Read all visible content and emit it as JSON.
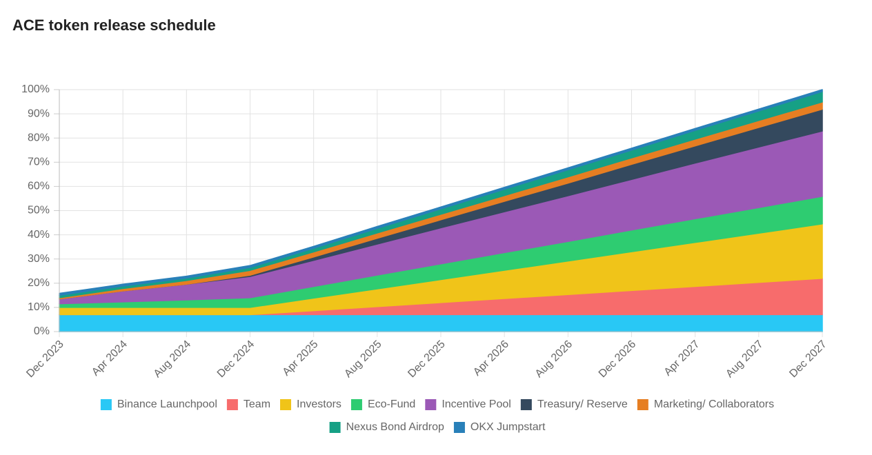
{
  "chart_data": {
    "type": "stacked-area",
    "title": "ACE token release schedule",
    "categories": [
      "Dec 2023",
      "Apr 2024",
      "Aug 2024",
      "Dec 2024",
      "Apr 2025",
      "Aug 2025",
      "Dec 2025",
      "Apr 2026",
      "Aug 2026",
      "Dec 2026",
      "Apr 2027",
      "Aug 2027",
      "Dec 2027"
    ],
    "series": [
      {
        "name": "Binance Launchpool",
        "color": "#29c8f5",
        "values": [
          7,
          7,
          7,
          7,
          7,
          7,
          7,
          7,
          7,
          7,
          7,
          7,
          7
        ]
      },
      {
        "name": "Team",
        "color": "#f76c6c",
        "values": [
          0,
          0,
          0,
          0,
          1.67,
          3.33,
          5,
          6.67,
          8.33,
          10,
          11.67,
          13.33,
          15
        ]
      },
      {
        "name": "Investors",
        "color": "#f0c419",
        "values": [
          3,
          3,
          3,
          3,
          5.17,
          7.33,
          9.5,
          11.67,
          13.83,
          16,
          18.17,
          20.33,
          22.5
        ]
      },
      {
        "name": "Eco-Fund",
        "color": "#2ecc71",
        "values": [
          1.5,
          2.3,
          3.1,
          4,
          4.8,
          5.7,
          6.5,
          7.3,
          8.1,
          9,
          9.8,
          10.6,
          11.4
        ]
      },
      {
        "name": "Incentive Pool",
        "color": "#9b59b6",
        "values": [
          2,
          4.5,
          6.5,
          8.8,
          10.8,
          12.8,
          14.9,
          16.9,
          18.9,
          20.9,
          23,
          25,
          27
        ]
      },
      {
        "name": "Treasury/ Reserve",
        "color": "#34495e",
        "values": [
          0,
          0,
          0,
          0.5,
          1.4,
          2.4,
          3.3,
          4.3,
          5.2,
          6.2,
          7.1,
          8.1,
          9
        ]
      },
      {
        "name": "Marketing/ Collaborators",
        "color": "#e67e22",
        "values": [
          0.5,
          1,
          1.5,
          2,
          2.1,
          2.2,
          2.3,
          2.4,
          2.6,
          2.7,
          2.8,
          2.9,
          3
        ]
      },
      {
        "name": "Nexus Bond Airdrop",
        "color": "#16a085",
        "values": [
          1,
          1,
          1,
          1.2,
          1.5,
          1.9,
          2.2,
          2.6,
          2.9,
          3.2,
          3.6,
          3.9,
          4.3
        ]
      },
      {
        "name": "OKX Jumpstart",
        "color": "#2980b9",
        "values": [
          0.8,
          0.8,
          0.8,
          0.8,
          0.8,
          0.8,
          0.8,
          0.8,
          0.8,
          0.8,
          0.8,
          0.8,
          0.8
        ]
      }
    ],
    "ylim": [
      0,
      100
    ],
    "yticks": [
      {
        "value": 0,
        "label": "0%"
      },
      {
        "value": 10,
        "label": "10%"
      },
      {
        "value": 20,
        "label": "20%"
      },
      {
        "value": 30,
        "label": "30%"
      },
      {
        "value": 40,
        "label": "40%"
      },
      {
        "value": 50,
        "label": "50%"
      },
      {
        "value": 60,
        "label": "60%"
      },
      {
        "value": 70,
        "label": "70%"
      },
      {
        "value": 80,
        "label": "80%"
      },
      {
        "value": 90,
        "label": "90%"
      },
      {
        "value": 100,
        "label": "100%"
      }
    ],
    "grid": true,
    "legend": "bottom"
  }
}
